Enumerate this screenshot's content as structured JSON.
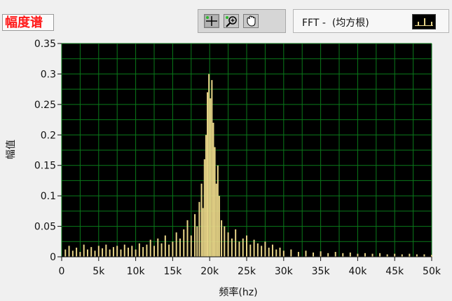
{
  "graph": {
    "title": "幅度谱",
    "legend_label": "FFT -  (均方根)",
    "palette_icons": [
      "cursor-move-icon",
      "zoom-icon",
      "pan-hand-icon"
    ]
  },
  "chart_data": {
    "type": "bar",
    "ylabel": "幅值",
    "xlabel": "频率(hz)",
    "xlim": [
      0,
      50000
    ],
    "ylim": [
      0,
      0.35
    ],
    "x_ticks": [
      "0",
      "5k",
      "10k",
      "15k",
      "20k",
      "25k",
      "30k",
      "35k",
      "40k",
      "45k",
      "50k"
    ],
    "y_ticks": [
      "0",
      "0.05",
      "0.1",
      "0.15",
      "0.2",
      "0.25",
      "0.3",
      "0.35"
    ],
    "grid": true,
    "series_color": "#e8d588",
    "background": "#000000",
    "grid_color": "#0a7a1a",
    "x": [
      500,
      1000,
      1500,
      2000,
      2500,
      3000,
      3500,
      4000,
      4500,
      5000,
      5500,
      6000,
      6500,
      7000,
      7500,
      8000,
      8500,
      9000,
      9500,
      10000,
      10500,
      11000,
      11500,
      12000,
      12500,
      13000,
      13500,
      14000,
      14500,
      15000,
      15500,
      16000,
      16500,
      17000,
      17500,
      18000,
      18300,
      18600,
      18900,
      19100,
      19300,
      19500,
      19700,
      19900,
      20100,
      20300,
      20500,
      20700,
      20900,
      21100,
      21300,
      21600,
      22000,
      22500,
      23000,
      23500,
      24000,
      24500,
      25000,
      25500,
      26000,
      26500,
      27000,
      27500,
      28000,
      28500,
      29000,
      29500,
      30000,
      31000,
      32000,
      33000,
      34000,
      35000,
      36000,
      37000,
      38000,
      39000,
      40000,
      41000,
      42000,
      43000,
      44000,
      45000,
      46000,
      47000,
      48000,
      49000,
      50000
    ],
    "values": [
      0.012,
      0.018,
      0.01,
      0.015,
      0.008,
      0.02,
      0.012,
      0.016,
      0.01,
      0.018,
      0.014,
      0.02,
      0.012,
      0.016,
      0.018,
      0.012,
      0.02,
      0.015,
      0.018,
      0.012,
      0.022,
      0.016,
      0.02,
      0.028,
      0.018,
      0.03,
      0.022,
      0.035,
      0.02,
      0.025,
      0.04,
      0.03,
      0.045,
      0.06,
      0.035,
      0.07,
      0.05,
      0.09,
      0.12,
      0.08,
      0.16,
      0.2,
      0.27,
      0.3,
      0.26,
      0.29,
      0.22,
      0.18,
      0.12,
      0.15,
      0.1,
      0.06,
      0.05,
      0.04,
      0.03,
      0.045,
      0.025,
      0.03,
      0.035,
      0.02,
      0.028,
      0.022,
      0.018,
      0.025,
      0.015,
      0.02,
      0.012,
      0.015,
      0.01,
      0.012,
      0.008,
      0.01,
      0.007,
      0.009,
      0.006,
      0.008,
      0.006,
      0.007,
      0.005,
      0.006,
      0.005,
      0.006,
      0.004,
      0.005,
      0.004,
      0.005,
      0.004,
      0.004,
      0.003
    ]
  }
}
